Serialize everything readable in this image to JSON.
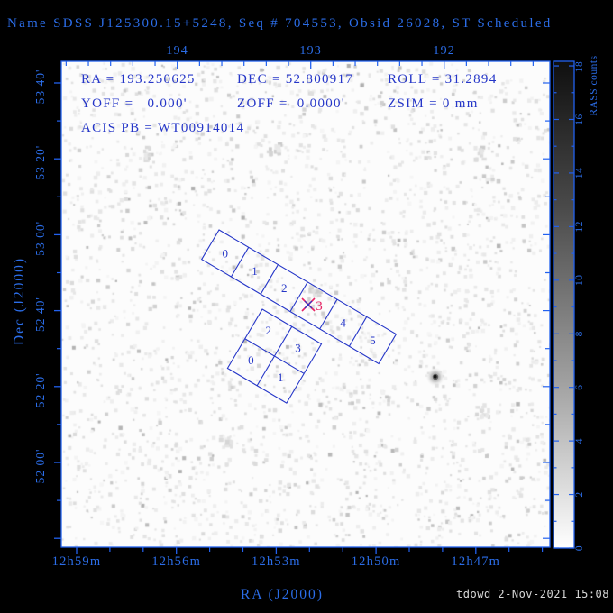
{
  "title": {
    "text": "Name SDSS J125300.15+5248, Seq # 704553, Obsid 26028, ST Scheduled"
  },
  "info": {
    "rows": [
      [
        "RA = 193.250625",
        "DEC = 52.800917",
        "ROLL = 31.2894"
      ],
      [
        "YOFF =   0.000'",
        "ZOFF =  0.0000'",
        "ZSIM = 0 mm"
      ],
      [
        "ACIS PB = WT00914014"
      ]
    ]
  },
  "axes": {
    "x_bottom": {
      "label": "RA (J2000)",
      "ticks": [
        "12h59m",
        "12h56m",
        "12h53m",
        "12h50m",
        "12h47m"
      ]
    },
    "x_top": {
      "ticks": [
        "194",
        "193",
        "192"
      ]
    },
    "y_left": {
      "label": "Dec (J2000)",
      "ticks": [
        "53 40'",
        "53 20'",
        "53 00'",
        "52 40'",
        "52 20'",
        "52 00'"
      ]
    }
  },
  "colorbar": {
    "label": "RASS counts",
    "tick_labels": [
      "0",
      "2",
      "4",
      "6",
      "8",
      "10",
      "12",
      "14",
      "16",
      "18"
    ],
    "range": [
      0,
      18
    ]
  },
  "acis": {
    "s_labels": [
      "0",
      "1",
      "2",
      "3",
      "4",
      "5"
    ],
    "i_labels": [
      "2",
      "3",
      "0",
      "1"
    ]
  },
  "aimpoint": {
    "marker": "X",
    "label": "3"
  },
  "footer": {
    "timestamp": "tdowd  2-Nov-2021 15:08"
  },
  "colors": {
    "on_black_blue": "#2b6de8",
    "in_plot_blue": "#2536c8",
    "frame_blue": "#2261ef",
    "aimpoint_red": "#e82465",
    "timestamp_gray": "#d8d8d8",
    "sky_white": "#fcfcfc"
  },
  "chart_data": {
    "type": "scatter",
    "title": "Name SDSS J125300.15+5248, Seq # 704553, Obsid 26028, ST Scheduled",
    "xlabel": "RA (J2000)",
    "ylabel": "Dec (J2000)",
    "x_ticks_bottom": [
      "12h59m",
      "12h56m",
      "12h53m",
      "12h50m",
      "12h47m"
    ],
    "x_ticks_top_degrees": [
      194,
      193,
      192
    ],
    "y_ticks": [
      "53 40'",
      "53 20'",
      "53 00'",
      "52 40'",
      "52 20'",
      "52 00'"
    ],
    "x_range_deg": [
      194.9,
      191.2
    ],
    "y_range_deg": [
      51.6,
      53.76
    ],
    "grid": false,
    "colorbar": {
      "label": "RASS counts",
      "min": 0,
      "max": 18,
      "tick_step": 2,
      "dark_end": "top"
    },
    "pointing": {
      "ra_deg": 193.250625,
      "dec_deg": 52.800917,
      "roll_deg": 31.2894,
      "yoff_arcmin": 0.0,
      "zoff_arcmin": 0.0,
      "zsim_mm": 0
    },
    "overlays": [
      {
        "name": "ACIS-S array",
        "chips": [
          "0",
          "1",
          "2",
          "3",
          "4",
          "5"
        ],
        "aimpoint_chip": "3"
      },
      {
        "name": "ACIS-I array",
        "chips": [
          "0",
          "1",
          "2",
          "3"
        ]
      }
    ],
    "sources": [
      {
        "approx_ra": "12h49.5m",
        "approx_dec": "52 26'",
        "note": "dark point source right of chip S5"
      }
    ]
  }
}
